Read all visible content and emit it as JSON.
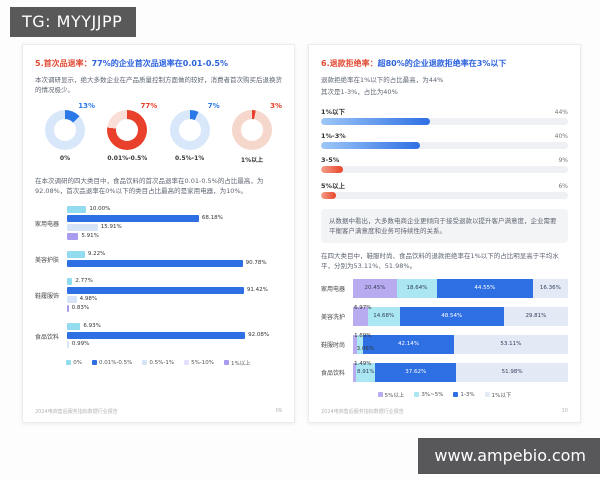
{
  "overlays": {
    "tg_label": "TG: MYYJJPP",
    "watermark": "www.ampebio.com"
  },
  "colors": {
    "title_red": "#e14a32",
    "title_blue": "#2b62de",
    "left_series": [
      "#93dcf0",
      "#2e6fe4",
      "#d7e4f8",
      "#e4dffa",
      "#a99cef"
    ],
    "stacked_series": [
      "#b9abf0",
      "#abe6f3",
      "#2e6fe4",
      "#e3eaf6"
    ],
    "pill_blue": {
      "from": "#9ec7f7",
      "to": "#2e6fe4"
    },
    "pill_red": {
      "from": "#f5a08a",
      "to": "#e8442a"
    },
    "pill_track": "#eef0f3"
  },
  "left_page": {
    "title_prefix": "5.首次品退率：",
    "title_rest": "77%的企业首次品退率在0.01-0.5%",
    "intro": "本次调研显示，绝大多数企业在产品质量控制方面做的较好，消费者首次购买后退换货的情况极少。",
    "donuts": [
      {
        "display": "13%",
        "value": 13,
        "label": "0%",
        "accent": "#2b79e8",
        "ring": "#d9e7fa"
      },
      {
        "display": "77%",
        "value": 77,
        "label": "0.01%-0.5%",
        "accent": "#e8402a",
        "ring": "#f9dfd7"
      },
      {
        "display": "7%",
        "value": 7,
        "label": "0.5%-1%",
        "accent": "#2b79e8",
        "ring": "#d9e7fa"
      },
      {
        "display": "3%",
        "value": 3,
        "label": "1%以上",
        "accent": "#e8402a",
        "ring": "#f6d7cc"
      }
    ],
    "para2": "在本次调研的四大类目中，食品饮料的首次品退率在0.01-0.5%的占比最高，为92.08%，首次品退率在0%以下的类目占比最高的是家用电器，为10%。",
    "bar_chart": {
      "rows": [
        {
          "category": "家用电器",
          "bars": [
            {
              "series": 0,
              "value": 10.0,
              "label": "10.00%"
            },
            {
              "series": 1,
              "value": 68.18,
              "label": "68.18%"
            },
            {
              "series": 2,
              "value": 15.91,
              "label": "15.91%"
            },
            {
              "series": 4,
              "value": 5.91,
              "label": "5.91%"
            }
          ]
        },
        {
          "category": "美容护肤",
          "bars": [
            {
              "series": 0,
              "value": 9.22,
              "label": "9.22%"
            },
            {
              "series": 1,
              "value": 90.78,
              "label": "90.78%"
            }
          ]
        },
        {
          "category": "鞋履服饰",
          "bars": [
            {
              "series": 0,
              "value": 2.77,
              "label": "2.77%"
            },
            {
              "series": 1,
              "value": 91.42,
              "label": "91.42%"
            },
            {
              "series": 2,
              "value": 4.98,
              "label": "4.98%"
            },
            {
              "series": 4,
              "value": 0.83,
              "label": "0.83%"
            }
          ]
        },
        {
          "category": "食品饮料",
          "bars": [
            {
              "series": 0,
              "value": 6.93,
              "label": "6.93%"
            },
            {
              "series": 1,
              "value": 92.08,
              "label": "92.08%"
            },
            {
              "series": 2,
              "value": 0.99,
              "label": "0.99%"
            }
          ]
        }
      ],
      "legend": [
        "0%",
        "0.01%-0.5%",
        "0.5%-1%",
        "5%-10%",
        "1%以上"
      ]
    },
    "footer": {
      "text": "2024电商售后服务指标数据行业报告",
      "page": "09"
    }
  },
  "right_page": {
    "title_prefix": "6.退款拒绝率：",
    "title_rest": "超80%的企业退款拒绝率在3%以下",
    "intro_line1": "退款拒绝率在1%以下的占比最高，为44%",
    "intro_line2": "其次是1-3%，占比为40%",
    "progress_chart": {
      "rows": [
        {
          "label": "1%以下",
          "value": 44,
          "display": "44%",
          "palette": "blue"
        },
        {
          "label": "1%-3%",
          "value": 40,
          "display": "40%",
          "palette": "blue"
        },
        {
          "label": "3-5%",
          "value": 9,
          "display": "9%",
          "palette": "red"
        },
        {
          "label": "5%以上",
          "value": 6,
          "display": "6%",
          "palette": "red"
        }
      ]
    },
    "callout": "从数据中看出，大多数电商企业更倾向于接受退款以提升客户满意度，企业需要平衡客户满意度和业务可持续性的关系。",
    "para2": "在四大类目中，鞋服时尚、食品饮料的退款拒绝率在1%以下的占比明显高于平均水平，分别为53.11%、51.98%。",
    "stacked_chart": {
      "rows": [
        {
          "category": "家用电器",
          "segments": [
            {
              "value": 20.45,
              "label": "20.45%"
            },
            {
              "value": 18.64,
              "label": "18.64%"
            },
            {
              "value": 44.55,
              "label": "44.55%"
            },
            {
              "value": 16.36,
              "label": "16.36%"
            }
          ]
        },
        {
          "category": "美容洗护",
          "segments": [
            {
              "value": 6.97,
              "label": "6.97%"
            },
            {
              "value": 14.68,
              "label": "14.68%"
            },
            {
              "value": 48.54,
              "label": "48.54%"
            },
            {
              "value": 29.81,
              "label": "29.81%"
            }
          ]
        },
        {
          "category": "鞋服时尚",
          "segments": [
            {
              "value": 1.69,
              "label": "1.69%"
            },
            {
              "value": 3.06,
              "label": "3.06%"
            },
            {
              "value": 42.14,
              "label": "42.14%"
            },
            {
              "value": 53.11,
              "label": "53.11%"
            }
          ]
        },
        {
          "category": "食品饮料",
          "segments": [
            {
              "value": 1.49,
              "label": "1.49%"
            },
            {
              "value": 8.91,
              "label": "8.91%"
            },
            {
              "value": 37.62,
              "label": "37.62%"
            },
            {
              "value": 51.98,
              "label": "51.98%"
            }
          ]
        }
      ],
      "legend": [
        "5%以上",
        "3%~5%",
        "1-3%",
        "1%以下"
      ]
    },
    "footer": {
      "text": "2024电商售后服务指标数据行业报告",
      "page": "10"
    }
  },
  "chart_data": [
    {
      "type": "pie",
      "title": "首次品退率分布（环形图组）",
      "labels": [
        "0%",
        "0.01%-0.5%",
        "0.5%-1%",
        "1%以上"
      ],
      "values": [
        13,
        77,
        7,
        3
      ]
    },
    {
      "type": "bar",
      "title": "四大类目首次品退率占比",
      "categories": [
        "家用电器",
        "美容护肤",
        "鞋履服饰",
        "食品饮料"
      ],
      "series": [
        {
          "name": "0%",
          "values": [
            10.0,
            9.22,
            2.77,
            6.93
          ]
        },
        {
          "name": "0.01%-0.5%",
          "values": [
            68.18,
            90.78,
            91.42,
            92.08
          ]
        },
        {
          "name": "0.5%-1%",
          "values": [
            15.91,
            null,
            4.98,
            0.99
          ]
        },
        {
          "name": "1%以上",
          "values": [
            5.91,
            null,
            0.83,
            null
          ]
        }
      ],
      "xlim": [
        0,
        100
      ],
      "orientation": "horizontal",
      "legend_position": "bottom"
    },
    {
      "type": "bar",
      "title": "退款拒绝率分布",
      "categories": [
        "1%以下",
        "1%-3%",
        "3-5%",
        "5%以上"
      ],
      "values": [
        44,
        40,
        9,
        6
      ],
      "xlim": [
        0,
        100
      ],
      "orientation": "horizontal"
    },
    {
      "type": "bar",
      "stacked": true,
      "title": "四大类目退款拒绝率占比",
      "categories": [
        "家用电器",
        "美容洗护",
        "鞋服时尚",
        "食品饮料"
      ],
      "series": [
        {
          "name": "5%以上",
          "values": [
            20.45,
            6.97,
            1.69,
            1.49
          ]
        },
        {
          "name": "3%~5%",
          "values": [
            18.64,
            14.68,
            3.06,
            8.91
          ]
        },
        {
          "name": "1-3%",
          "values": [
            44.55,
            48.54,
            42.14,
            37.62
          ]
        },
        {
          "name": "1%以下",
          "values": [
            16.36,
            29.81,
            53.11,
            51.98
          ]
        }
      ],
      "xlim": [
        0,
        100
      ],
      "orientation": "horizontal",
      "legend_position": "bottom"
    }
  ]
}
